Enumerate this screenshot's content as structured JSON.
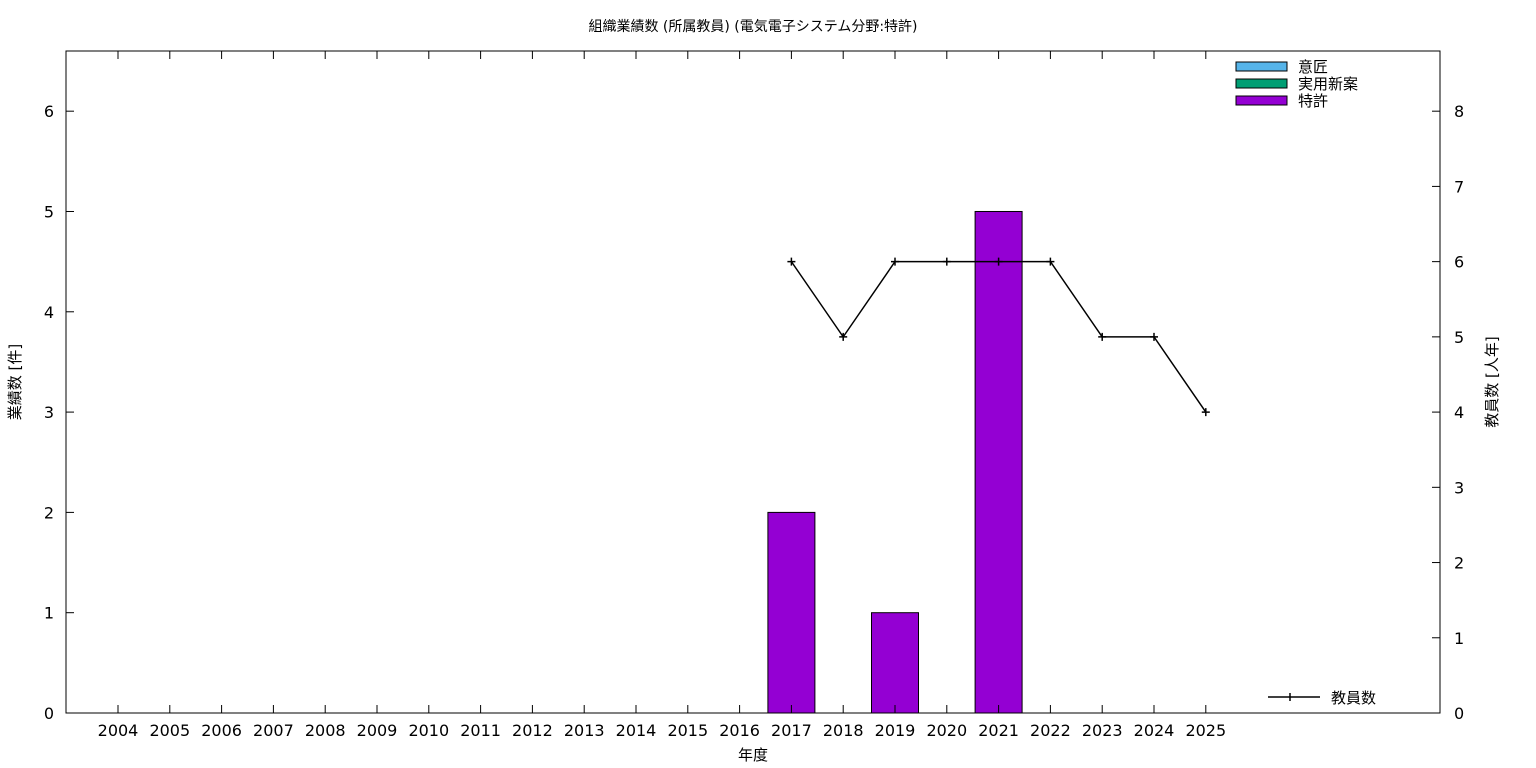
{
  "chart_data": {
    "type": "bar",
    "title": "組織業績数 (所属教員) (電気電子システム分野:特許)",
    "xlabel": "年度",
    "ylabel": "業績数 [件]",
    "y2label": "教員数 [人年]",
    "categories": [
      "2004",
      "2005",
      "2006",
      "2007",
      "2008",
      "2009",
      "2010",
      "2011",
      "2012",
      "2013",
      "2014",
      "2015",
      "2016",
      "2017",
      "2018",
      "2019",
      "2020",
      "2021",
      "2022",
      "2023",
      "2024",
      "2025"
    ],
    "ylim": [
      0,
      6.6
    ],
    "y2lim": [
      0,
      8.8
    ],
    "yticks": [
      0,
      1,
      2,
      3,
      4,
      5,
      6
    ],
    "y2ticks": [
      0,
      1,
      2,
      3,
      4,
      5,
      6,
      7,
      8
    ],
    "stacked": true,
    "grid": false,
    "series": [
      {
        "name": "意匠",
        "color": "#56b4e9",
        "axis": "left",
        "values": [
          0,
          0,
          0,
          0,
          0,
          0,
          0,
          0,
          0,
          0,
          0,
          0,
          0,
          0,
          0,
          0,
          0,
          0,
          0,
          0,
          0,
          0
        ]
      },
      {
        "name": "実用新案",
        "color": "#009e73",
        "axis": "left",
        "values": [
          0,
          0,
          0,
          0,
          0,
          0,
          0,
          0,
          0,
          0,
          0,
          0,
          0,
          0,
          0,
          0,
          0,
          0,
          0,
          0,
          0,
          0
        ]
      },
      {
        "name": "特許",
        "color": "#9400d3",
        "axis": "left",
        "values": [
          0,
          0,
          0,
          0,
          0,
          0,
          0,
          0,
          0,
          0,
          0,
          0,
          0,
          2,
          0,
          1,
          0,
          5,
          0,
          0,
          0,
          0
        ]
      },
      {
        "name": "教員数",
        "color": "#000000",
        "axis": "right",
        "type": "line",
        "x": [
          "2017",
          "2018",
          "2019",
          "2020",
          "2021",
          "2022",
          "2023",
          "2024",
          "2025"
        ],
        "values": [
          6,
          5,
          6,
          6,
          6,
          6,
          5,
          5,
          4
        ]
      }
    ],
    "legend_position": "top-right"
  }
}
